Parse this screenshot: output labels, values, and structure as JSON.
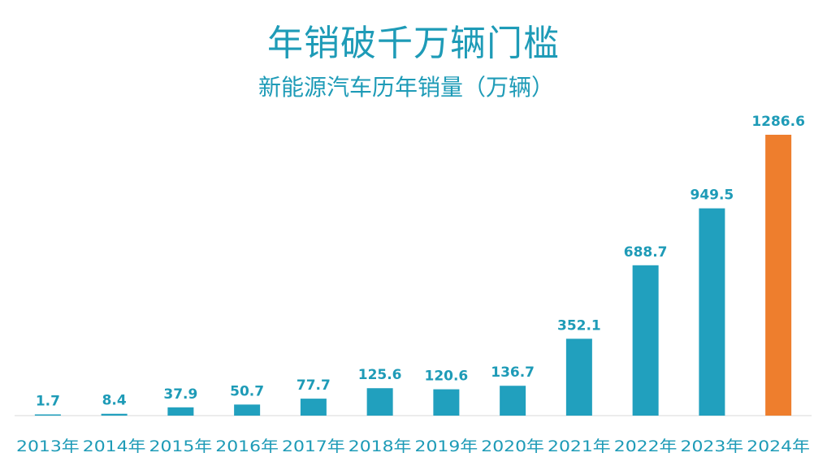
{
  "page": {
    "title": "年销破千万辆门槛",
    "subtitle": "新能源汽车历年销量（万辆）"
  },
  "colors": {
    "title": "#1E9BB7",
    "bar_primary": "#21A0BE",
    "bar_highlight": "#EE7E2D",
    "value_label": "#1E9BB7",
    "value_label_highlight": "#1E9BB7",
    "x_label": "#1E9BB7",
    "axis_line": "#D9D9D9"
  },
  "chart_data": {
    "type": "bar",
    "title": "年销破千万辆门槛",
    "subtitle": "新能源汽车历年销量（万辆）",
    "categories": [
      "2013年",
      "2014年",
      "2015年",
      "2016年",
      "2017年",
      "2018年",
      "2019年",
      "2020年",
      "2021年",
      "2022年",
      "2023年",
      "2024年"
    ],
    "values": [
      1.7,
      8.4,
      37.9,
      50.7,
      77.7,
      125.6,
      120.6,
      136.7,
      352.1,
      688.7,
      949.5,
      1286.6
    ],
    "value_labels": [
      "1.7",
      "8.4",
      "37.9",
      "50.7",
      "77.7",
      "125.6",
      "120.6",
      "136.7",
      "352.1",
      "688.7",
      "949.5",
      "1286.6"
    ],
    "highlight_category": "2024年",
    "ylim": [
      0,
      1286.6
    ],
    "grid": false,
    "legend": "none"
  }
}
